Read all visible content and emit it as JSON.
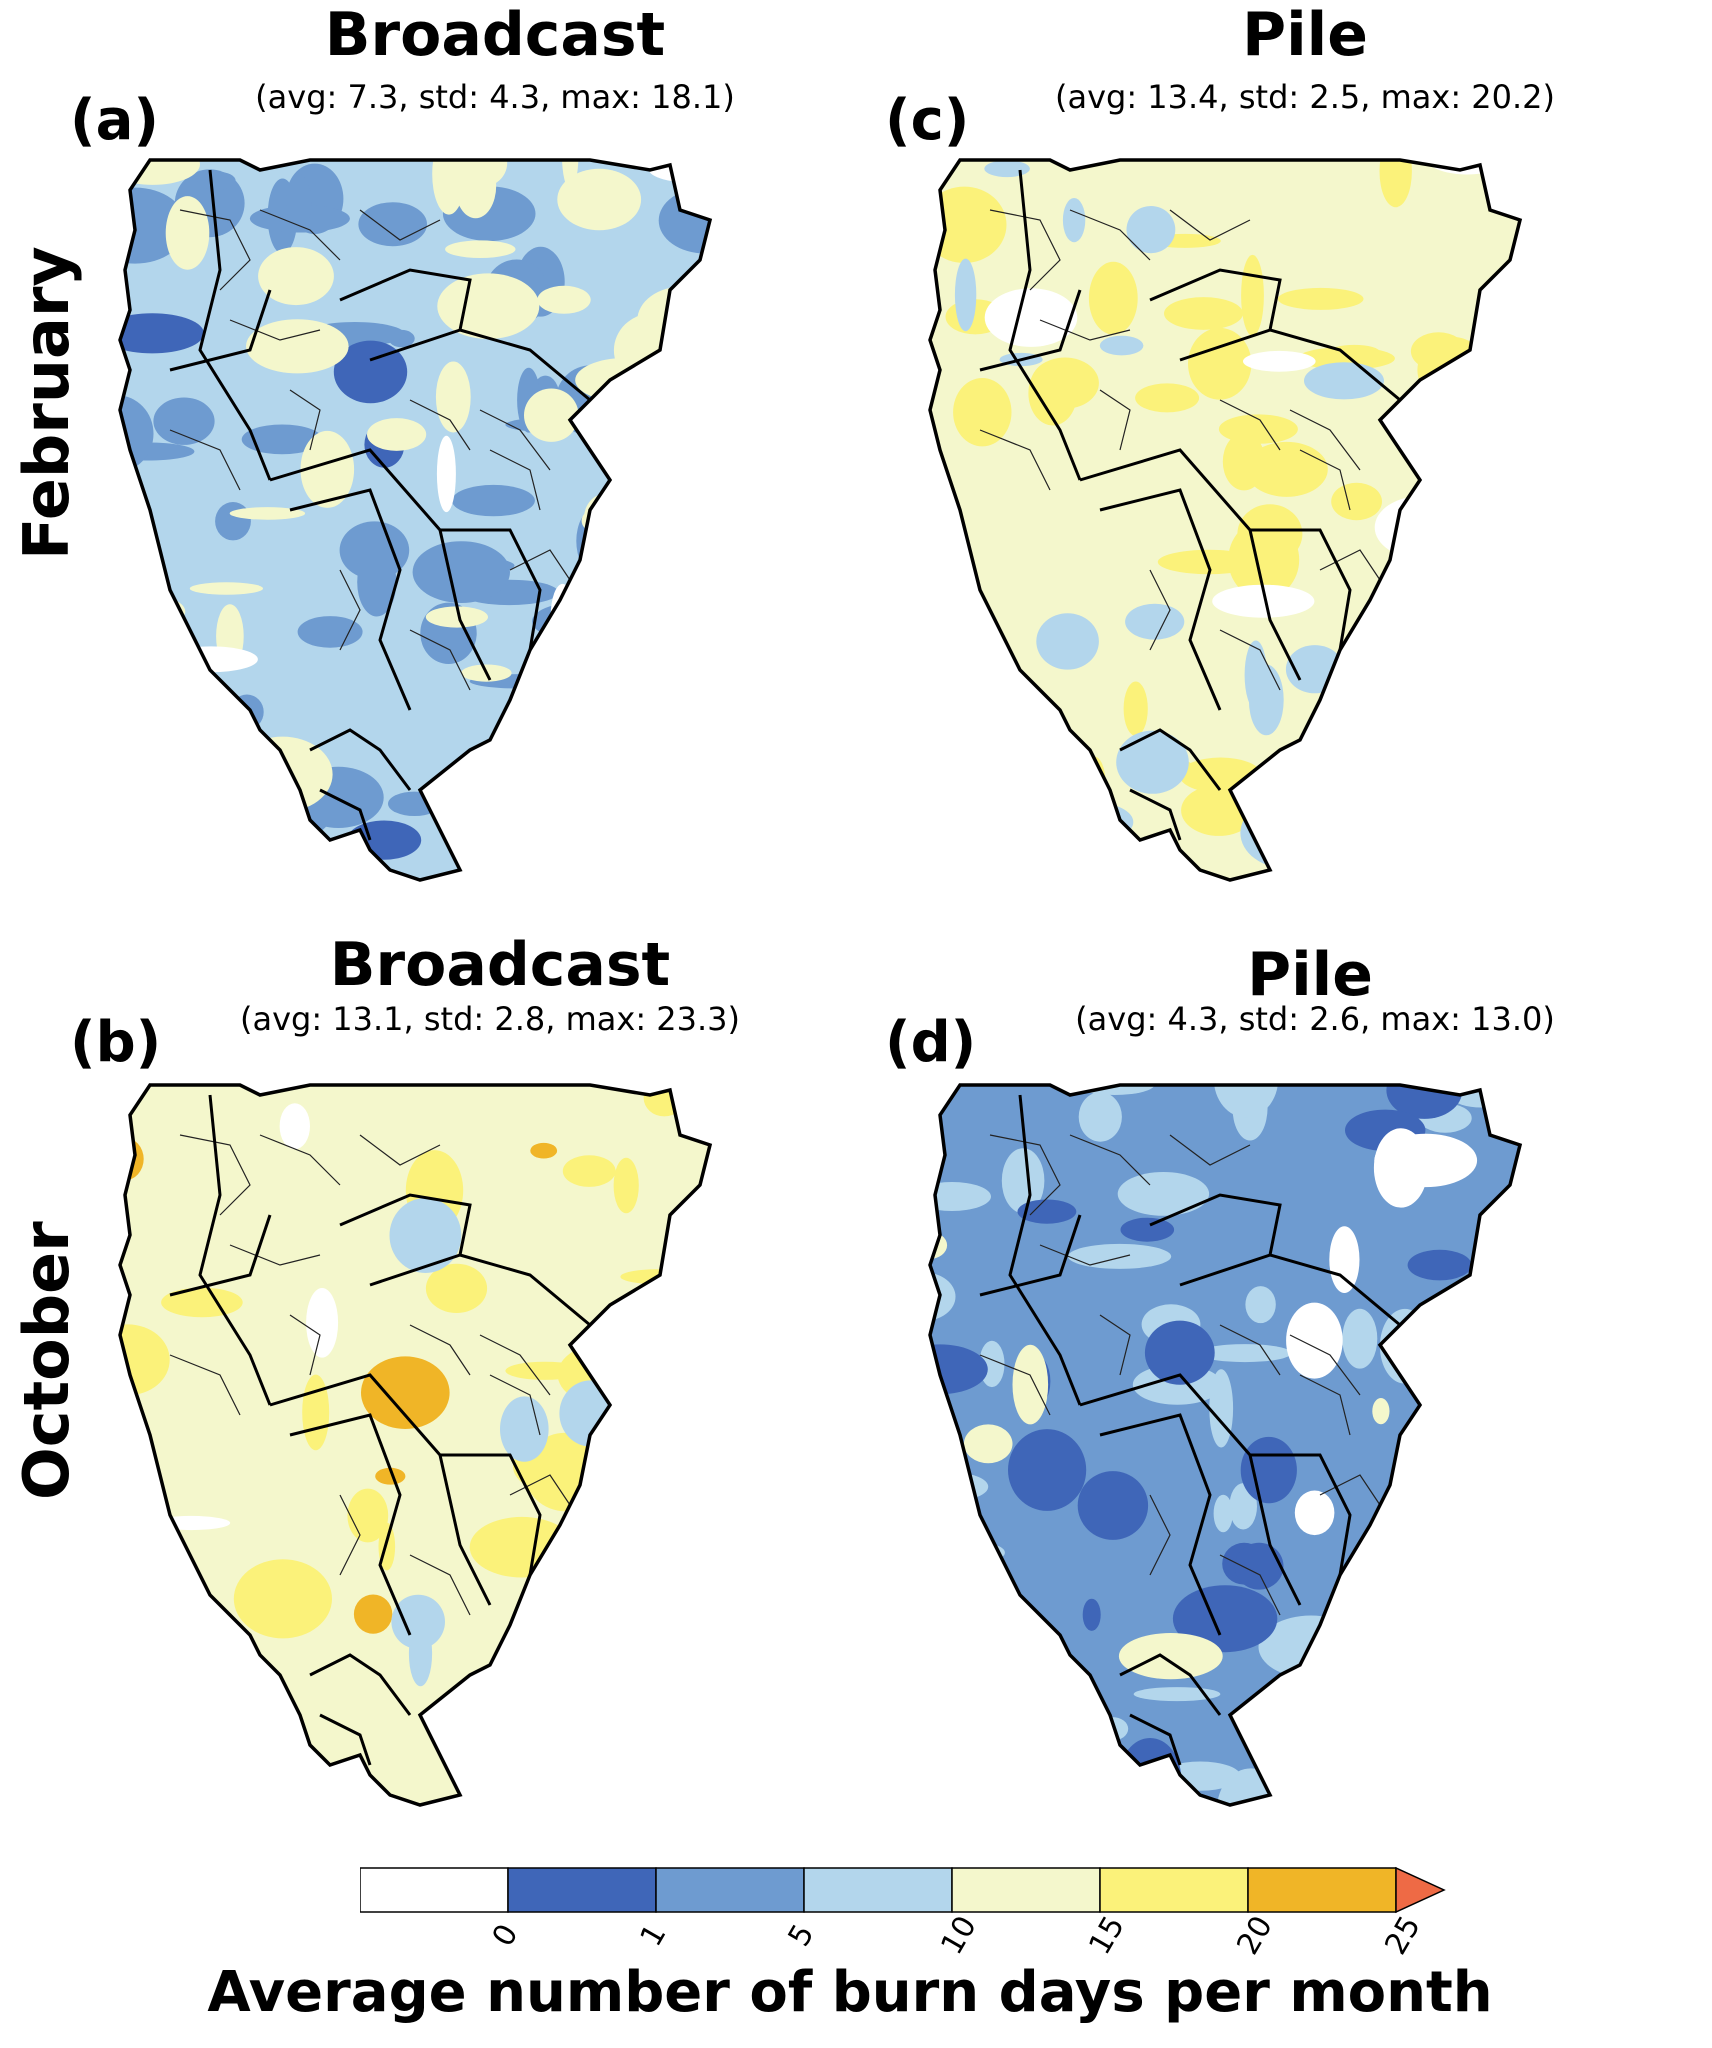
{
  "rows": {
    "feb": "February",
    "oct": "October"
  },
  "panels": [
    {
      "letter": "(a)",
      "title": "Broadcast",
      "stats": "(avg: 7.3, std: 4.3, max: 18.1)",
      "theme": "blue"
    },
    {
      "letter": "(c)",
      "title": "Pile",
      "stats": "(avg: 13.4, std: 2.5, max: 20.2)",
      "theme": "yellow"
    },
    {
      "letter": "(b)",
      "title": "Broadcast",
      "stats": "(avg: 13.1, std: 2.8, max: 23.3)",
      "theme": "yellow-light"
    },
    {
      "letter": "(d)",
      "title": "Pile",
      "stats": "(avg: 4.3, std: 2.6, max: 13.0)",
      "theme": "blue-dark"
    }
  ],
  "colorbar": {
    "label": "Average number of burn days per month",
    "ticks": [
      "0",
      "1",
      "5",
      "10",
      "15",
      "20",
      "25"
    ],
    "colors": [
      "#ffffff",
      "#3f66b8",
      "#6e9bd0",
      "#b3d6ec",
      "#f4f7cc",
      "#fbf27a",
      "#f0b527",
      "#ee6a45"
    ]
  }
}
